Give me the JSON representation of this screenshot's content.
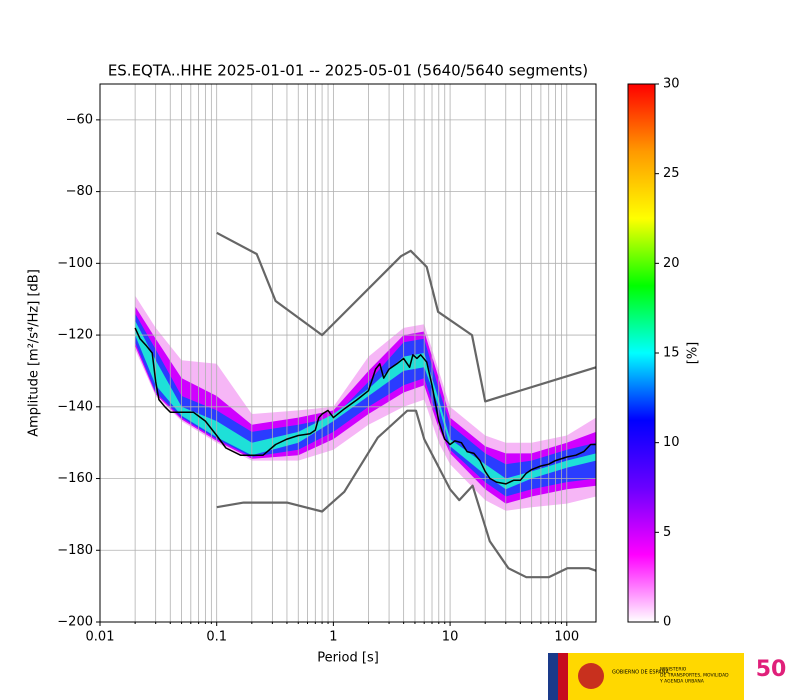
{
  "chart_data": {
    "type": "ppsd",
    "title": "ES.EQTA..HHE   2025-01-01 -- 2025-05-01  (5640/5640 segments)",
    "x_label": "Period [s]",
    "y_label": "Amplitude [m²/s⁴/Hz] [dB]",
    "colorbar_label": "[%]",
    "log_x": true,
    "grid": true,
    "xlim": [
      0.01,
      178
    ],
    "ylim": [
      -200,
      -50
    ],
    "xticks": [
      {
        "value": 0.01,
        "label": "0.01"
      },
      {
        "value": 0.1,
        "label": "0.1"
      },
      1,
      10,
      100
    ],
    "xminorticks": [
      0.02,
      0.03,
      0.04,
      0.05,
      0.06,
      0.07,
      0.08,
      0.09,
      0.2,
      0.3,
      0.4,
      0.5,
      0.6,
      0.7,
      0.8,
      0.9,
      2,
      3,
      4,
      5,
      6,
      7,
      8,
      9,
      20,
      30,
      40,
      50,
      60,
      70,
      80,
      90
    ],
    "yticks": [
      {
        "value": -60,
        "label": "−60"
      },
      {
        "value": -80,
        "label": "−80"
      },
      {
        "value": -100,
        "label": "−100"
      },
      {
        "value": -120,
        "label": "−120"
      },
      {
        "value": -140,
        "label": "−140"
      },
      {
        "value": -160,
        "label": "−160"
      },
      {
        "value": -180,
        "label": "−180"
      },
      {
        "value": -200,
        "label": "−200"
      }
    ],
    "clim": [
      0,
      30
    ],
    "cticks": [
      0,
      5,
      10,
      15,
      20,
      25,
      30
    ],
    "colormap": [
      "#ffffff",
      "#ff00ff",
      "#6a00ff",
      "#0000ff",
      "#00ffff",
      "#00ff00",
      "#ffff00",
      "#ff9900",
      "#ff0000"
    ],
    "density_bands": {
      "x": [
        0.02,
        0.03,
        0.05,
        0.1,
        0.2,
        0.5,
        1,
        2,
        4,
        6,
        8,
        10,
        20,
        30,
        50,
        100,
        178
      ],
      "bands": [
        {
          "color": "#f6b6f6",
          "lower": [
            -124,
            -137,
            -144,
            -150,
            -155,
            -155,
            -152,
            -145,
            -140,
            -138,
            -150,
            -156,
            -166,
            -169,
            -168,
            -167,
            -165
          ],
          "upper": [
            -109,
            -118,
            -127,
            -128,
            -142,
            -141,
            -140,
            -126,
            -118,
            -117,
            -130,
            -140,
            -148,
            -150,
            -150,
            -148,
            -143
          ]
        },
        {
          "color": "#d000ff",
          "lower": [
            -123,
            -136.5,
            -143.5,
            -149.5,
            -154.5,
            -153.5,
            -149,
            -142,
            -136,
            -134,
            -146,
            -153,
            -163,
            -167,
            -165,
            -163,
            -162
          ],
          "upper": [
            -112,
            -121,
            -132,
            -137,
            -145,
            -143,
            -141,
            -130,
            -120,
            -119,
            -132,
            -143,
            -151,
            -153,
            -153,
            -150,
            -147
          ]
        },
        {
          "color": "#2a3cff",
          "lower": [
            -122,
            -136,
            -143,
            -149,
            -154,
            -152,
            -147,
            -140,
            -134,
            -132,
            -144,
            -152,
            -161,
            -165,
            -163,
            -161,
            -160
          ],
          "upper": [
            -114,
            -124,
            -137,
            -141,
            -147,
            -145,
            -143,
            -133,
            -122,
            -121,
            -135,
            -145,
            -153,
            -156,
            -155,
            -152,
            -150
          ]
        },
        {
          "color": "#1ee0d8",
          "lower": [
            -120,
            -134,
            -142.5,
            -148.5,
            -153.5,
            -150,
            -144,
            -137,
            -130,
            -129,
            -140,
            -151,
            -159,
            -163,
            -160,
            -157,
            -155
          ],
          "upper": [
            -116,
            -127,
            -140,
            -144,
            -150,
            -147,
            -142,
            -135,
            -126,
            -125,
            -138,
            -149,
            -156,
            -160,
            -158,
            -155,
            -153
          ]
        }
      ]
    },
    "series": [
      {
        "color": "#666666",
        "x": [
          0.1,
          0.22,
          0.32,
          0.8,
          3.8,
          4.6,
          6.3,
          7.9,
          15.4,
          20,
          178
        ],
        "values": [
          -91.5,
          -97.4,
          -110.5,
          -120,
          -98,
          -96.5,
          -101,
          -113.5,
          -120,
          -138.5,
          -129
        ]
      },
      {
        "color": "#666666",
        "x": [
          0.1,
          0.17,
          0.4,
          0.8,
          1.24,
          2.4,
          4.3,
          5.1,
          6,
          10,
          12,
          15.6,
          21.9,
          31.6,
          45,
          70,
          101,
          154,
          178
        ],
        "values": [
          -168,
          -166.7,
          -166.7,
          -169.2,
          -163.7,
          -148.6,
          -141.1,
          -141.1,
          -149,
          -163,
          -166,
          -162,
          -177.5,
          -185,
          -187.5,
          -187.5,
          -185,
          -185,
          -185.7
        ]
      },
      {
        "color": "#000000",
        "x": [
          0.02,
          0.022,
          0.025,
          0.028,
          0.03,
          0.032,
          0.036,
          0.04,
          0.05,
          0.063,
          0.08,
          0.1,
          0.12,
          0.16,
          0.25,
          0.32,
          0.4,
          0.5,
          0.63,
          0.7,
          0.75,
          0.8,
          0.9,
          1.0,
          1.25,
          1.6,
          2.0,
          2.3,
          2.5,
          2.7,
          3.0,
          3.5,
          4.0,
          4.5,
          4.8,
          5.2,
          5.6,
          6.3,
          7,
          8,
          9,
          10,
          11,
          12.5,
          14,
          16,
          18,
          20,
          22,
          25,
          30,
          35,
          40,
          45,
          50,
          60,
          70,
          80,
          100,
          120,
          140,
          160,
          178
        ],
        "values": [
          -118,
          -121,
          -123,
          -125,
          -133,
          -138,
          -140,
          -141.5,
          -141.5,
          -141.5,
          -144,
          -148,
          -151.5,
          -153.5,
          -153.5,
          -150.5,
          -149,
          -148,
          -147.5,
          -146.5,
          -143,
          -142,
          -141,
          -143,
          -140.5,
          -138,
          -135.5,
          -129.5,
          -128,
          -132,
          -129.5,
          -128,
          -126.5,
          -129,
          -125.5,
          -126.5,
          -125.5,
          -127.5,
          -134,
          -144,
          -149,
          -150.5,
          -149.5,
          -150,
          -152.5,
          -153,
          -155,
          -158,
          -160,
          -161,
          -161.5,
          -160.5,
          -160.5,
          -158.5,
          -157.5,
          -156.5,
          -156,
          -155,
          -154,
          -153.5,
          -152.5,
          -150.5,
          -150.5
        ]
      }
    ]
  },
  "footer": {
    "gov": "GOBIERNO DE ESPAÑA",
    "ministry": [
      "MINISTERIO",
      "DE TRANSPORTES, MOVILIDAD",
      "Y AGENDA URBANA"
    ],
    "anniversary": "50"
  }
}
